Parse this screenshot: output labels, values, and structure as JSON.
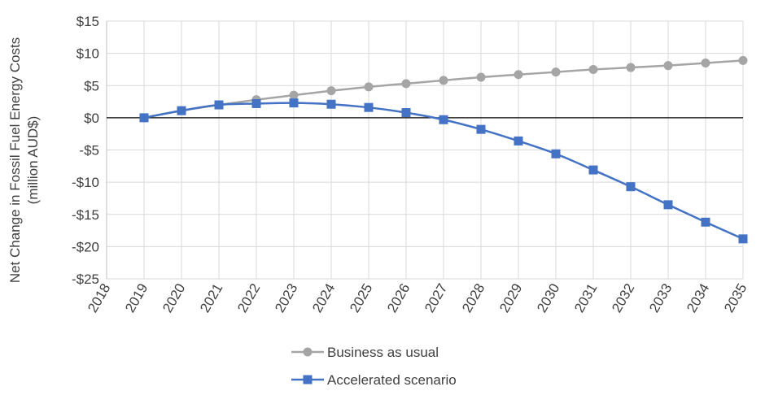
{
  "chart_data": {
    "type": "line",
    "title": "",
    "xlabel": "",
    "ylabel": "Net Change in Fossil Fuel Energy Costs (million AUD$)",
    "ylabel_lines": [
      "Net Change in Fossil Fuel Energy Costs",
      "(million AUD$)"
    ],
    "x": [
      2018,
      2019,
      2020,
      2021,
      2022,
      2023,
      2024,
      2025,
      2026,
      2027,
      2028,
      2029,
      2030,
      2031,
      2032,
      2033,
      2034,
      2035
    ],
    "x_tick_labels": [
      "2018",
      "2019",
      "2020",
      "2021",
      "2022",
      "2023",
      "2024",
      "2025",
      "2026",
      "2027",
      "2028",
      "2029",
      "2030",
      "2031",
      "2032",
      "2033",
      "2034",
      "2035"
    ],
    "ylim": [
      -25,
      15
    ],
    "y_ticks": [
      15,
      10,
      5,
      0,
      -5,
      -10,
      -15,
      -20,
      -25
    ],
    "y_tick_labels": [
      "$15",
      "$10",
      "$5",
      "$0",
      "-$5",
      "-$10",
      "-$15",
      "-$20",
      "-$25"
    ],
    "grid": true,
    "legend_position": "bottom",
    "series": [
      {
        "name": "Business as usual",
        "color": "#a5a5a5",
        "marker": "circle",
        "x": [
          2019,
          2020,
          2021,
          2022,
          2023,
          2024,
          2025,
          2026,
          2027,
          2028,
          2029,
          2030,
          2031,
          2032,
          2033,
          2034,
          2035
        ],
        "values": [
          0,
          1.1,
          2.0,
          2.8,
          3.5,
          4.2,
          4.8,
          5.3,
          5.8,
          6.3,
          6.7,
          7.1,
          7.5,
          7.8,
          8.1,
          8.5,
          8.9
        ]
      },
      {
        "name": "Accelerated scenario",
        "color": "#4472c4",
        "marker": "square",
        "x": [
          2019,
          2020,
          2021,
          2022,
          2023,
          2024,
          2025,
          2026,
          2027,
          2028,
          2029,
          2030,
          2031,
          2032,
          2033,
          2034,
          2035
        ],
        "values": [
          0,
          1.1,
          2.0,
          2.2,
          2.3,
          2.1,
          1.6,
          0.8,
          -0.3,
          -1.8,
          -3.6,
          -5.6,
          -8.1,
          -10.7,
          -13.5,
          -16.2,
          -18.8
        ]
      }
    ]
  }
}
